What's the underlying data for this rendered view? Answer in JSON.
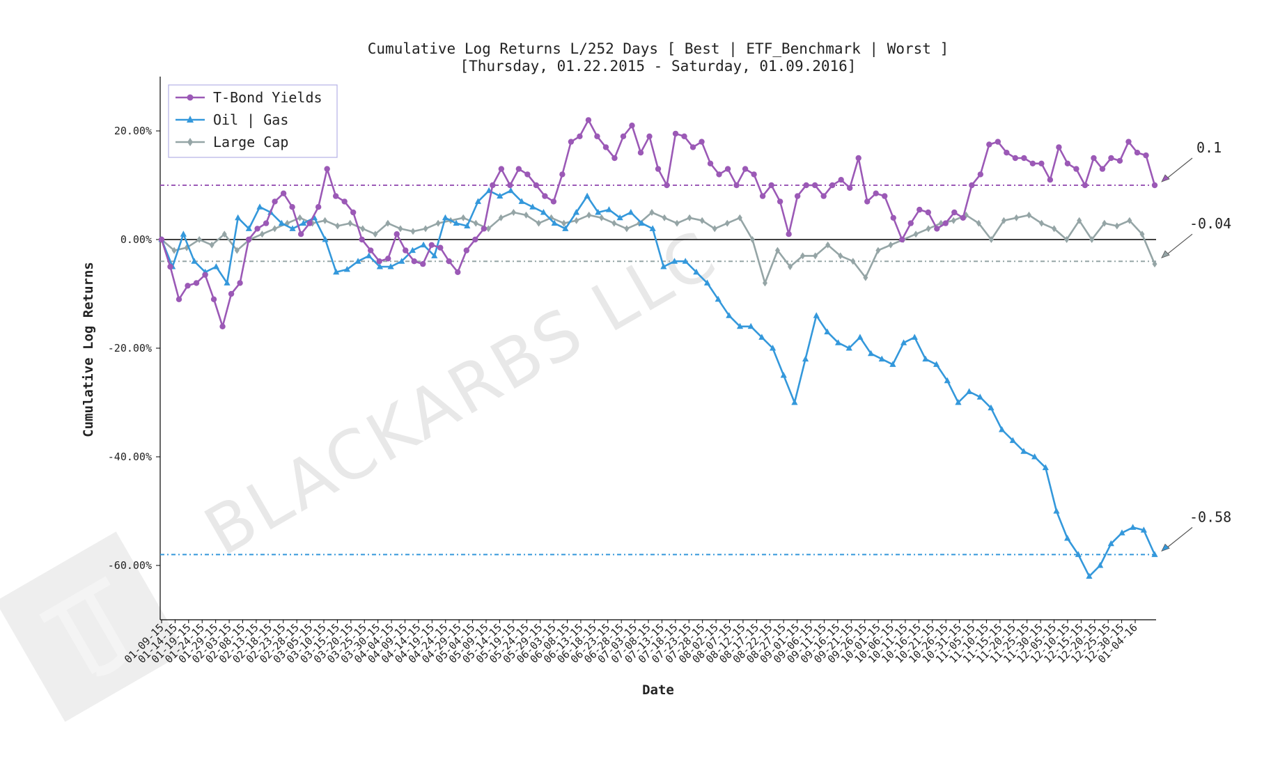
{
  "chart_data": {
    "type": "line",
    "title": "Cumulative Log Returns L/252 Days [ Best | ETF_Benchmark | Worst ]",
    "subtitle": "[Thursday, 01.22.2015 - Saturday, 01.09.2016]",
    "xlabel": "Date",
    "ylabel": "Cumulative Log Returns",
    "ylim": [
      -0.7,
      0.3
    ],
    "yticks": [
      0.2,
      0.0,
      -0.2,
      -0.4,
      -0.6
    ],
    "ytick_labels": [
      "20.00%",
      "0.00%",
      "-20.00%",
      "-40.00%",
      "-60.00%"
    ],
    "xtick_labels": [
      "01-09-15",
      "01-14-15",
      "01-19-15",
      "01-24-15",
      "01-29-15",
      "02-03-15",
      "02-08-15",
      "02-13-15",
      "02-18-15",
      "02-23-15",
      "02-28-15",
      "03-05-15",
      "03-10-15",
      "03-15-15",
      "03-20-15",
      "03-25-15",
      "03-30-15",
      "04-04-15",
      "04-09-15",
      "04-14-15",
      "04-19-15",
      "04-24-15",
      "04-29-15",
      "05-04-15",
      "05-09-15",
      "05-14-15",
      "05-19-15",
      "05-24-15",
      "05-29-15",
      "06-03-15",
      "06-08-15",
      "06-13-15",
      "06-18-15",
      "06-23-15",
      "06-28-15",
      "07-03-15",
      "07-08-15",
      "07-13-15",
      "07-18-15",
      "07-23-15",
      "07-28-15",
      "08-02-15",
      "08-07-15",
      "08-12-15",
      "08-17-15",
      "08-22-15",
      "08-27-15",
      "09-01-15",
      "09-06-15",
      "09-11-15",
      "09-16-15",
      "09-21-15",
      "09-26-15",
      "10-01-15",
      "10-06-15",
      "10-11-15",
      "10-16-15",
      "10-21-15",
      "10-26-15",
      "10-31-15",
      "11-05-15",
      "11-10-15",
      "11-15-15",
      "11-20-15",
      "11-25-15",
      "11-30-15",
      "12-05-15",
      "12-10-15",
      "12-15-15",
      "12-20-15",
      "12-25-15",
      "12-30-15",
      "01-04-16"
    ],
    "legend_position": "top-left",
    "grid": false,
    "series": [
      {
        "name": "T-Bond Yields",
        "color": "#9b59b6",
        "marker": "circle",
        "final_value": 0.1,
        "final_label": "0.1",
        "values": [
          0.0,
          -0.05,
          -0.11,
          -0.085,
          -0.08,
          -0.065,
          -0.11,
          -0.16,
          -0.1,
          -0.08,
          0.0,
          0.02,
          0.03,
          0.07,
          0.085,
          0.06,
          0.01,
          0.03,
          0.06,
          0.13,
          0.08,
          0.07,
          0.05,
          0.0,
          -0.02,
          -0.04,
          -0.035,
          0.01,
          -0.02,
          -0.04,
          -0.045,
          -0.01,
          -0.015,
          -0.04,
          -0.06,
          -0.02,
          0.0,
          0.02,
          0.1,
          0.13,
          0.1,
          0.13,
          0.12,
          0.1,
          0.08,
          0.07,
          0.12,
          0.18,
          0.19,
          0.22,
          0.19,
          0.17,
          0.15,
          0.19,
          0.21,
          0.16,
          0.19,
          0.13,
          0.1,
          0.195,
          0.19,
          0.17,
          0.18,
          0.14,
          0.12,
          0.13,
          0.1,
          0.13,
          0.12,
          0.08,
          0.1,
          0.07,
          0.01,
          0.08,
          0.1,
          0.1,
          0.08,
          0.1,
          0.11,
          0.095,
          0.15,
          0.07,
          0.085,
          0.08,
          0.04,
          0.0,
          0.03,
          0.055,
          0.05,
          0.02,
          0.03,
          0.05,
          0.04,
          0.1,
          0.12,
          0.175,
          0.18,
          0.16,
          0.15,
          0.15,
          0.14,
          0.14,
          0.11,
          0.17,
          0.14,
          0.13,
          0.1,
          0.15,
          0.13,
          0.15,
          0.145,
          0.18,
          0.16,
          0.155,
          0.1
        ]
      },
      {
        "name": "Oil | Gas",
        "color": "#3498db",
        "marker": "triangle",
        "final_value": -0.58,
        "final_label": "-0.58",
        "values": [
          0.0,
          -0.05,
          0.01,
          -0.04,
          -0.06,
          -0.05,
          -0.08,
          0.04,
          0.02,
          0.06,
          0.05,
          0.03,
          0.02,
          0.03,
          0.04,
          0.0,
          -0.06,
          -0.055,
          -0.04,
          -0.03,
          -0.05,
          -0.05,
          -0.04,
          -0.02,
          -0.01,
          -0.03,
          0.04,
          0.03,
          0.025,
          0.07,
          0.09,
          0.08,
          0.09,
          0.07,
          0.06,
          0.05,
          0.03,
          0.02,
          0.05,
          0.08,
          0.05,
          0.055,
          0.04,
          0.05,
          0.03,
          0.02,
          -0.05,
          -0.04,
          -0.04,
          -0.06,
          -0.08,
          -0.11,
          -0.14,
          -0.16,
          -0.16,
          -0.18,
          -0.2,
          -0.25,
          -0.3,
          -0.22,
          -0.14,
          -0.17,
          -0.19,
          -0.2,
          -0.18,
          -0.21,
          -0.22,
          -0.23,
          -0.19,
          -0.18,
          -0.22,
          -0.23,
          -0.26,
          -0.3,
          -0.28,
          -0.29,
          -0.31,
          -0.35,
          -0.37,
          -0.39,
          -0.4,
          -0.42,
          -0.5,
          -0.55,
          -0.58,
          -0.62,
          -0.6,
          -0.56,
          -0.54,
          -0.53,
          -0.535,
          -0.58
        ]
      },
      {
        "name": "Large Cap",
        "color": "#95a5a6",
        "marker": "diamond",
        "final_value": -0.04,
        "final_label": "-0.04",
        "values": [
          0.0,
          -0.02,
          -0.015,
          0.0,
          -0.01,
          0.01,
          -0.02,
          0.0,
          0.01,
          0.02,
          0.03,
          0.04,
          0.03,
          0.035,
          0.025,
          0.03,
          0.02,
          0.01,
          0.03,
          0.02,
          0.015,
          0.02,
          0.03,
          0.035,
          0.04,
          0.03,
          0.02,
          0.04,
          0.05,
          0.045,
          0.03,
          0.04,
          0.03,
          0.035,
          0.045,
          0.04,
          0.03,
          0.02,
          0.03,
          0.05,
          0.04,
          0.03,
          0.04,
          0.035,
          0.02,
          0.03,
          0.04,
          0.0,
          -0.08,
          -0.02,
          -0.05,
          -0.03,
          -0.03,
          -0.01,
          -0.03,
          -0.04,
          -0.07,
          -0.02,
          -0.01,
          0.0,
          0.01,
          0.02,
          0.03,
          0.035,
          0.045,
          0.03,
          0.0,
          0.035,
          0.04,
          0.045,
          0.03,
          0.02,
          0.0,
          0.035,
          0.0,
          0.03,
          0.025,
          0.035,
          0.01,
          -0.045
        ]
      }
    ],
    "hlines": [
      {
        "series": "T-Bond Yields",
        "value": 0.1,
        "color": "#9b59b6",
        "style": "dashdot"
      },
      {
        "series": "Large Cap",
        "value": -0.04,
        "color": "#95a5a6",
        "style": "dashdot"
      },
      {
        "series": "Oil | Gas",
        "value": -0.58,
        "color": "#3498db",
        "style": "dashdot"
      },
      {
        "value": 0.0,
        "color": "#000000",
        "style": "solid"
      }
    ]
  },
  "watermark": {
    "text": "BLACKARBS LLC",
    "color": "#d6d6d6"
  }
}
